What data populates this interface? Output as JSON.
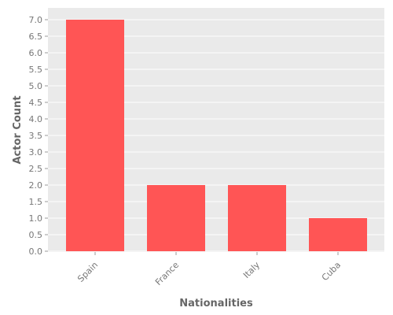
{
  "chart_data": {
    "type": "bar",
    "title": "",
    "xlabel": "Nationalities",
    "ylabel": "Actor Count",
    "categories": [
      "Spain",
      "France",
      "Italy",
      "Cuba"
    ],
    "values": [
      7,
      2,
      2,
      1
    ],
    "ylim": [
      0,
      7.0
    ],
    "yticks": [
      "0.0",
      "0.5",
      "1.0",
      "1.5",
      "2.0",
      "2.5",
      "3.0",
      "3.5",
      "4.0",
      "4.5",
      "5.0",
      "5.5",
      "6.0",
      "6.5",
      "7.0"
    ],
    "grid": true,
    "legend": "none",
    "colors": {
      "bar": "#ff5555",
      "plot_background": "#eaeaea",
      "grid": "#ffffff",
      "tick_text": "#777777",
      "axis_label": "#666666"
    }
  }
}
